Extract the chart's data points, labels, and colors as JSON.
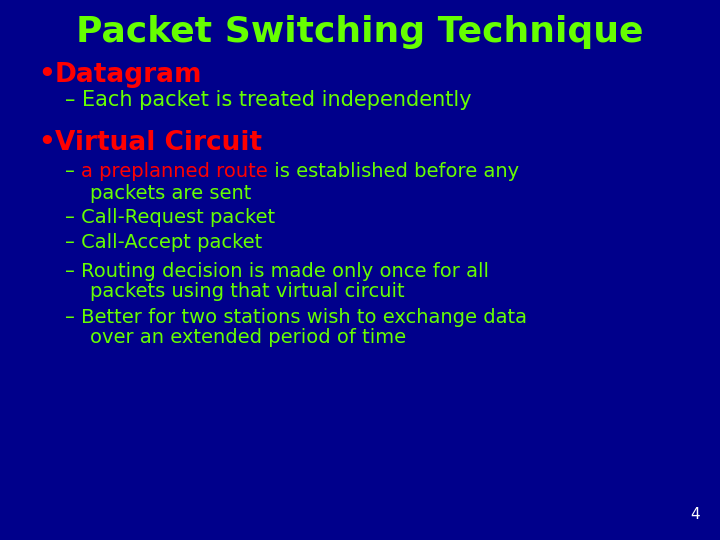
{
  "background_color": "#00008B",
  "title": "Packet Switching Technique",
  "title_color": "#66FF00",
  "title_fontsize": 26,
  "bullet_color": "#FF0000",
  "bullet1_label": "Datagram",
  "bullet1_fontsize": 19,
  "sub1": "– Each packet is treated independently",
  "sub1_color": "#66FF00",
  "sub1_fontsize": 15,
  "bullet2_label": "Virtual Circuit",
  "bullet2_fontsize": 19,
  "sub2_prefix": "– ",
  "sub2_highlight": "a preplanned route",
  "sub2_suffix": " is established before any",
  "sub2_line2": "    packets are sent",
  "sub2_item2": "– Call-Request packet",
  "sub2_item3": "– Call-Accept packet",
  "sub2_item4a": "– Routing decision is made only once for all",
  "sub2_item4b": "    packets using that virtual circuit",
  "sub2_item5a": "– Better for two stations wish to exchange data",
  "sub2_item5b": "    over an extended period of time",
  "sub2_color": "#66FF00",
  "sub2_highlight_color": "#FF0000",
  "sub2_fontsize": 14,
  "page_number": "4",
  "page_number_color": "#FFFFFF",
  "page_number_fontsize": 11
}
